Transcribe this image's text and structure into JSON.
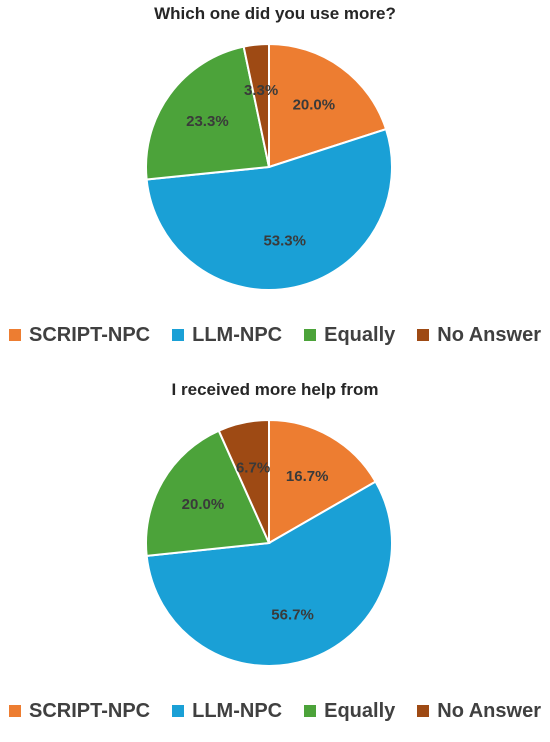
{
  "colors": {
    "SCRIPT-NPC": "#ED7D31",
    "LLM-NPC": "#1AA0D6",
    "Equally": "#4CA33A",
    "No Answer": "#9E4A14"
  },
  "chart_data": [
    {
      "type": "pie",
      "title": "Which one did you use more?",
      "categories": [
        "SCRIPT-NPC",
        "LLM-NPC",
        "Equally",
        "No Answer"
      ],
      "values": [
        20.0,
        53.3,
        23.3,
        3.3
      ],
      "labels": [
        "20.0%",
        "53.3%",
        "23.3%",
        "3.3%"
      ],
      "legend": "bottom"
    },
    {
      "type": "pie",
      "title": "I received more help from",
      "categories": [
        "SCRIPT-NPC",
        "LLM-NPC",
        "Equally",
        "No Answer"
      ],
      "values": [
        16.7,
        56.7,
        20.0,
        6.7
      ],
      "labels": [
        "16.7%",
        "56.7%",
        "20.0%",
        "6.7%"
      ],
      "legend": "bottom"
    }
  ]
}
